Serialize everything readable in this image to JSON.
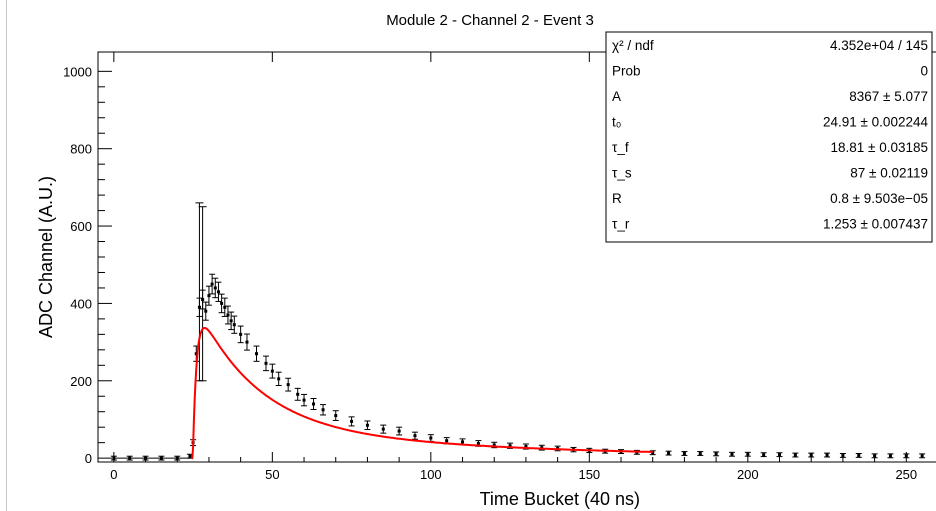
{
  "chart_data": {
    "type": "scatter",
    "title": "Module 2 - Channel 2 - Event 3",
    "xlabel": "Time Bucket (40 ns)",
    "ylabel": "ADC Channel (A.U.)",
    "xlim": [
      -5,
      260
    ],
    "ylim": [
      -10,
      1050
    ],
    "x_ticks": [
      0,
      50,
      100,
      150,
      200,
      250
    ],
    "y_ticks": [
      0,
      200,
      400,
      600,
      800,
      1000
    ],
    "grid": false,
    "series": [
      {
        "style": "points-with-error-bars",
        "color": "#000000",
        "points": [
          [
            0,
            0
          ],
          [
            5,
            0
          ],
          [
            10,
            0
          ],
          [
            15,
            0
          ],
          [
            20,
            0
          ],
          [
            24,
            5
          ],
          [
            25,
            40
          ],
          [
            26,
            270
          ],
          [
            27,
            390
          ],
          [
            28,
            410
          ],
          [
            29,
            380
          ],
          [
            30,
            420
          ],
          [
            31,
            450
          ],
          [
            32,
            440
          ],
          [
            33,
            430
          ],
          [
            34,
            400
          ],
          [
            35,
            390
          ],
          [
            36,
            370
          ],
          [
            37,
            355
          ],
          [
            38,
            345
          ],
          [
            40,
            320
          ],
          [
            42,
            300
          ],
          [
            45,
            270
          ],
          [
            48,
            245
          ],
          [
            50,
            225
          ],
          [
            52,
            205
          ],
          [
            55,
            190
          ],
          [
            58,
            165
          ],
          [
            60,
            150
          ],
          [
            63,
            140
          ],
          [
            66,
            125
          ],
          [
            70,
            110
          ],
          [
            75,
            95
          ],
          [
            80,
            85
          ],
          [
            85,
            75
          ],
          [
            90,
            70
          ],
          [
            95,
            58
          ],
          [
            100,
            52
          ],
          [
            105,
            45
          ],
          [
            110,
            42
          ],
          [
            115,
            38
          ],
          [
            120,
            34
          ],
          [
            125,
            32
          ],
          [
            130,
            30
          ],
          [
            135,
            27
          ],
          [
            140,
            25
          ],
          [
            145,
            22
          ],
          [
            150,
            20
          ],
          [
            155,
            18
          ],
          [
            160,
            17
          ],
          [
            165,
            15
          ],
          [
            170,
            14
          ],
          [
            175,
            13
          ],
          [
            180,
            12
          ],
          [
            185,
            12
          ],
          [
            190,
            11
          ],
          [
            195,
            10
          ],
          [
            200,
            10
          ],
          [
            205,
            9
          ],
          [
            210,
            9
          ],
          [
            215,
            8
          ],
          [
            220,
            8
          ],
          [
            225,
            8
          ],
          [
            230,
            7
          ],
          [
            235,
            7
          ],
          [
            240,
            6
          ],
          [
            245,
            6
          ],
          [
            250,
            6
          ],
          [
            255,
            6
          ]
        ],
        "outliers": [
          {
            "x": 27,
            "y": 410,
            "err_low": 200,
            "err_high": 660
          },
          {
            "x": 28,
            "y": 420,
            "err_low": 200,
            "err_high": 650
          }
        ]
      },
      {
        "style": "fit-curve",
        "color": "#ff0000",
        "x_start": 24.5,
        "x_end": 170
      }
    ],
    "legend": {
      "placement": "top-right",
      "rows": [
        {
          "name": "χ² / ndf",
          "value": "4.352e+04 / 145"
        },
        {
          "name": "Prob",
          "value": "0"
        },
        {
          "name": "A",
          "value": "8367 ± 5.077"
        },
        {
          "name": "t₀",
          "value": "24.91 ± 0.002244"
        },
        {
          "name": "τ_f",
          "value": "18.81 ± 0.03185"
        },
        {
          "name": "τ_s",
          "value": "87 ± 0.02119"
        },
        {
          "name": "R",
          "value": "0.8 ± 9.503e−05"
        },
        {
          "name": "τ_r",
          "value": "1.253 ± 0.007437"
        }
      ]
    },
    "fit_parameters": {
      "A": 8367,
      "t0": 24.91,
      "tau_f": 18.81,
      "tau_s": 87,
      "R": 0.8,
      "tau_r": 1.253
    }
  }
}
